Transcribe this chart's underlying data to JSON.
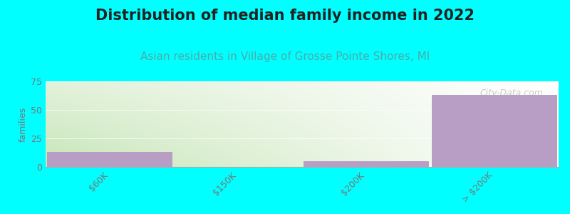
{
  "title": "Distribution of median family income in 2022",
  "subtitle": "Asian residents in Village of Grosse Pointe Shores, MI",
  "categories": [
    "$60K",
    "$150K",
    "$200K",
    "> $200K"
  ],
  "values": [
    13,
    0,
    5,
    63
  ],
  "bar_color": "#b89ec4",
  "bg_color": "#00ffff",
  "ylabel": "families",
  "ylim": [
    0,
    75
  ],
  "yticks": [
    0,
    25,
    50,
    75
  ],
  "watermark": "City-Data.com",
  "title_fontsize": 15,
  "title_color": "#222222",
  "subtitle_fontsize": 11,
  "subtitle_color": "#4daaaa",
  "tick_color": "#777777",
  "grid_color": "#dddddd",
  "plot_grad_left": "#c8eab8",
  "plot_grad_right": "#f8fff8"
}
